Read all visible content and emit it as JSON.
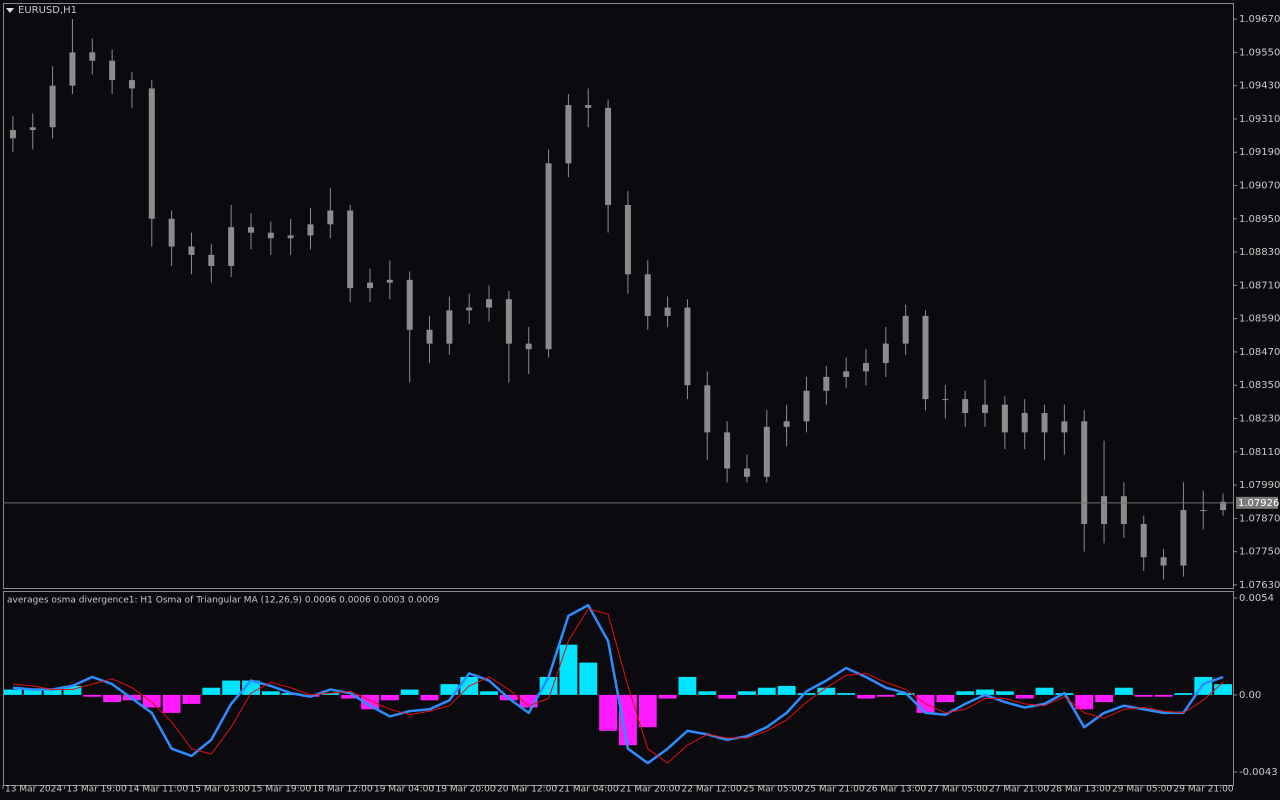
{
  "chart_data": [
    {
      "type": "candlestick",
      "title": "EURUSD,H1",
      "color": "#8c8c8c",
      "open": [
        1.0924,
        1.0927,
        1.0928,
        1.0943,
        1.0955,
        1.0952,
        1.0945,
        1.0942,
        1.0895,
        1.0885,
        1.0882,
        1.0878,
        1.0892,
        1.089,
        1.0888,
        1.0889,
        1.0893,
        1.0898,
        1.087,
        1.0872,
        1.0873,
        1.0855,
        1.085,
        1.0862,
        1.0863,
        1.0866,
        1.085,
        1.0848,
        1.0915,
        1.0936,
        1.0935,
        1.09,
        1.0875,
        1.086,
        1.0863,
        1.0835,
        1.0818,
        1.0805,
        1.0802,
        1.082,
        1.0822,
        1.0833,
        1.0838,
        1.084,
        1.0843,
        1.085,
        1.086,
        1.083,
        1.083,
        1.0825,
        1.0828,
        1.0818,
        1.0825,
        1.0818,
        1.0822,
        1.0785,
        1.0795,
        1.0785,
        1.0773,
        1.077,
        1.079,
        1.079
      ],
      "high": [
        1.0932,
        1.0933,
        1.095,
        1.0967,
        1.096,
        1.0956,
        1.0948,
        1.0945,
        1.0898,
        1.089,
        1.0886,
        1.09,
        1.0897,
        1.0894,
        1.0895,
        1.0899,
        1.0906,
        1.09,
        1.0877,
        1.088,
        1.0876,
        1.086,
        1.0867,
        1.0868,
        1.0871,
        1.0869,
        1.0856,
        1.092,
        1.094,
        1.0942,
        1.0938,
        1.0905,
        1.088,
        1.0867,
        1.0866,
        1.084,
        1.0822,
        1.081,
        1.0826,
        1.0828,
        1.0838,
        1.0842,
        1.0845,
        1.0848,
        1.0856,
        1.0864,
        1.0862,
        1.0835,
        1.0833,
        1.0837,
        1.0831,
        1.083,
        1.0828,
        1.0828,
        1.0826,
        1.0815,
        1.08,
        1.0788,
        1.0776,
        1.08,
        1.0797,
        1.0796
      ],
      "low": [
        1.0919,
        1.092,
        1.0924,
        1.094,
        1.0947,
        1.094,
        1.0935,
        1.0885,
        1.0878,
        1.0875,
        1.0872,
        1.0874,
        1.0884,
        1.0882,
        1.0882,
        1.0884,
        1.0888,
        1.0865,
        1.0865,
        1.0866,
        1.0836,
        1.0843,
        1.0846,
        1.0857,
        1.0858,
        1.0836,
        1.0839,
        1.0845,
        1.091,
        1.0928,
        1.089,
        1.0868,
        1.0855,
        1.0856,
        1.083,
        1.0808,
        1.08,
        1.08,
        1.08,
        1.0813,
        1.0818,
        1.0828,
        1.0834,
        1.0835,
        1.0838,
        1.0846,
        1.0826,
        1.0823,
        1.082,
        1.082,
        1.0812,
        1.0812,
        1.0808,
        1.081,
        1.0775,
        1.0778,
        1.078,
        1.0768,
        1.0765,
        1.0766,
        1.0783,
        1.0788
      ],
      "close": [
        1.0927,
        1.0928,
        1.0943,
        1.0955,
        1.0952,
        1.0945,
        1.0942,
        1.0895,
        1.0885,
        1.0882,
        1.0878,
        1.0892,
        1.089,
        1.0888,
        1.0889,
        1.0893,
        1.0898,
        1.087,
        1.0872,
        1.0873,
        1.0855,
        1.085,
        1.0862,
        1.0863,
        1.0866,
        1.085,
        1.0848,
        1.0915,
        1.0936,
        1.0935,
        1.09,
        1.0875,
        1.086,
        1.0863,
        1.0835,
        1.0818,
        1.0805,
        1.0802,
        1.082,
        1.0822,
        1.0833,
        1.0838,
        1.084,
        1.0843,
        1.085,
        1.086,
        1.083,
        1.083,
        1.0825,
        1.0828,
        1.0818,
        1.0825,
        1.0818,
        1.0822,
        1.0785,
        1.0795,
        1.0785,
        1.0773,
        1.077,
        1.079,
        1.079,
        1.0793
      ],
      "last_price": 1.07926,
      "ylim": [
        1.07619,
        1.09728
      ],
      "yticks": [
        {
          "value": 1.0967,
          "label": "1.09670"
        },
        {
          "value": 1.0955,
          "label": "1.09550"
        },
        {
          "value": 1.0943,
          "label": "1.09430"
        },
        {
          "value": 1.0931,
          "label": "1.09310"
        },
        {
          "value": 1.0919,
          "label": "1.09190"
        },
        {
          "value": 1.0907,
          "label": "1.09070"
        },
        {
          "value": 1.0895,
          "label": "1.08950"
        },
        {
          "value": 1.0883,
          "label": "1.08830"
        },
        {
          "value": 1.0871,
          "label": "1.08710"
        },
        {
          "value": 1.0859,
          "label": "1.08590"
        },
        {
          "value": 1.0847,
          "label": "1.08470"
        },
        {
          "value": 1.0835,
          "label": "1.08350"
        },
        {
          "value": 1.0823,
          "label": "1.08230"
        },
        {
          "value": 1.0811,
          "label": "1.08110"
        },
        {
          "value": 1.0799,
          "label": "1.07990"
        },
        {
          "value": 1.0787,
          "label": "1.07870"
        },
        {
          "value": 1.0775,
          "label": "1.07750"
        },
        {
          "value": 1.0763,
          "label": "1.07630"
        }
      ]
    },
    {
      "type": "osma",
      "title": "averages osma divergence1: H1 Osma of Triangular MA (12,26,9) 0.0006 0.0006 0.0003 0.0009",
      "up_color": "#00e5ff",
      "down_color": "#ff1aff",
      "values": [
        0.0003,
        0.0003,
        0.0003,
        0.0005,
        -0.0001,
        -0.0004,
        -0.0003,
        -0.0007,
        -0.001,
        -0.0005,
        0.0004,
        0.0008,
        0.0008,
        0.0002,
        0.0001,
        -0.0001,
        0.0001,
        -0.0002,
        -0.0008,
        -0.0003,
        0.0003,
        -0.0003,
        0.0006,
        0.001,
        0.0002,
        -0.0003,
        -0.0007,
        0.001,
        0.0028,
        0.0018,
        -0.002,
        -0.0028,
        -0.0018,
        -0.0002,
        0.001,
        0.0002,
        -0.0002,
        0.0002,
        0.0004,
        0.0005,
        0.0001,
        0.0004,
        0.0001,
        -0.0002,
        -0.0001,
        0.0001,
        -0.001,
        -0.0004,
        0.0002,
        0.0003,
        0.0002,
        -0.0002,
        0.0004,
        0.0001,
        -0.0008,
        -0.0004,
        0.0004,
        -0.0001,
        -0.0001,
        0.0001,
        0.001,
        0.0006
      ],
      "series": [
        {
          "color": "#2f8cff",
          "values": [
            0.0004,
            0.0003,
            0.0003,
            0.0005,
            0.001,
            0.0006,
            -0.0002,
            -0.001,
            -0.003,
            -0.0034,
            -0.0025,
            -0.0005,
            0.0008,
            0.0005,
            0.0001,
            -0.0001,
            0.0003,
            0.0001,
            -0.0006,
            -0.0012,
            -0.0009,
            -0.0008,
            -0.0003,
            0.0012,
            0.0008,
            -0.0002,
            -0.001,
            0.001,
            0.0044,
            0.005,
            0.003,
            -0.003,
            -0.0038,
            -0.003,
            -0.002,
            -0.0022,
            -0.0025,
            -0.0023,
            -0.0018,
            -0.001,
            0.0002,
            0.0008,
            0.0015,
            0.001,
            0.0004,
            0.0001,
            -0.001,
            -0.0011,
            -0.0005,
            0.0,
            -0.0004,
            -0.0007,
            -0.0005,
            0.0001,
            -0.0018,
            -0.001,
            -0.0006,
            -0.0008,
            -0.001,
            -0.001,
            0.0006,
            0.001
          ]
        },
        {
          "color": "#e01010",
          "values": [
            0.0006,
            0.0005,
            0.0003,
            0.0003,
            0.0006,
            0.0009,
            0.0004,
            -0.0004,
            -0.0015,
            -0.003,
            -0.0033,
            -0.0018,
            0.0001,
            0.0007,
            0.0004,
            0.0,
            0.0001,
            0.0002,
            -0.0003,
            -0.0008,
            -0.0011,
            -0.0009,
            -0.0006,
            0.0005,
            0.001,
            0.0003,
            -0.0006,
            -0.0002,
            0.003,
            0.0048,
            0.0045,
            0.0005,
            -0.003,
            -0.0038,
            -0.0028,
            -0.0022,
            -0.0024,
            -0.0024,
            -0.002,
            -0.0014,
            -0.0004,
            0.0004,
            0.0011,
            0.0012,
            0.0007,
            0.0003,
            -0.0005,
            -0.001,
            -0.0008,
            -0.0002,
            -0.0002,
            -0.0005,
            -0.0006,
            -0.0001,
            -0.001,
            -0.0013,
            -0.0008,
            -0.0007,
            -0.0009,
            -0.001,
            -0.0003,
            0.0007
          ]
        }
      ],
      "ylim": [
        -0.00502,
        0.00579
      ],
      "yticks": [
        0.0054,
        {
          "value": 0,
          "label": "0.00"
        },
        -0.0043
      ],
      "x_labels": [
        "13 Mar 2024",
        "13 Mar 19:00",
        "14 Mar 11:00",
        "15 Mar 03:00",
        "15 Mar 19:00",
        "18 Mar 12:00",
        "19 Mar 04:00",
        "19 Mar 20:00",
        "20 Mar 12:00",
        "21 Mar 04:00",
        "21 Mar 20:00",
        "22 Mar 12:00",
        "25 Mar 05:00",
        "25 Mar 21:00",
        "26 Mar 13:00",
        "27 Mar 05:00",
        "27 Mar 21:00",
        "28 Mar 13:00",
        "29 Mar 05:00",
        "29 Mar 21:00"
      ]
    }
  ]
}
